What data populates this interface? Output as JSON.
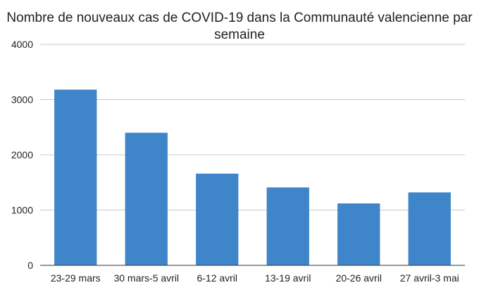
{
  "chart_data": {
    "type": "bar",
    "title_line1": "Nombre de nouveaux cas de COVID-19 dans la Communauté valencienne par",
    "title_line2": "semaine",
    "categories": [
      "23-29 mars",
      "30 mars-5 avril",
      "6-12 avril",
      "13-19 avril",
      "20-26 avril",
      "27 avril-3 mai"
    ],
    "values": [
      3180,
      2400,
      1660,
      1410,
      1120,
      1320
    ],
    "ylim": [
      0,
      4000
    ],
    "yticks": [
      "0",
      "1000",
      "2000",
      "3000",
      "4000"
    ],
    "grid": true,
    "bar_color": "#3f85c9"
  }
}
